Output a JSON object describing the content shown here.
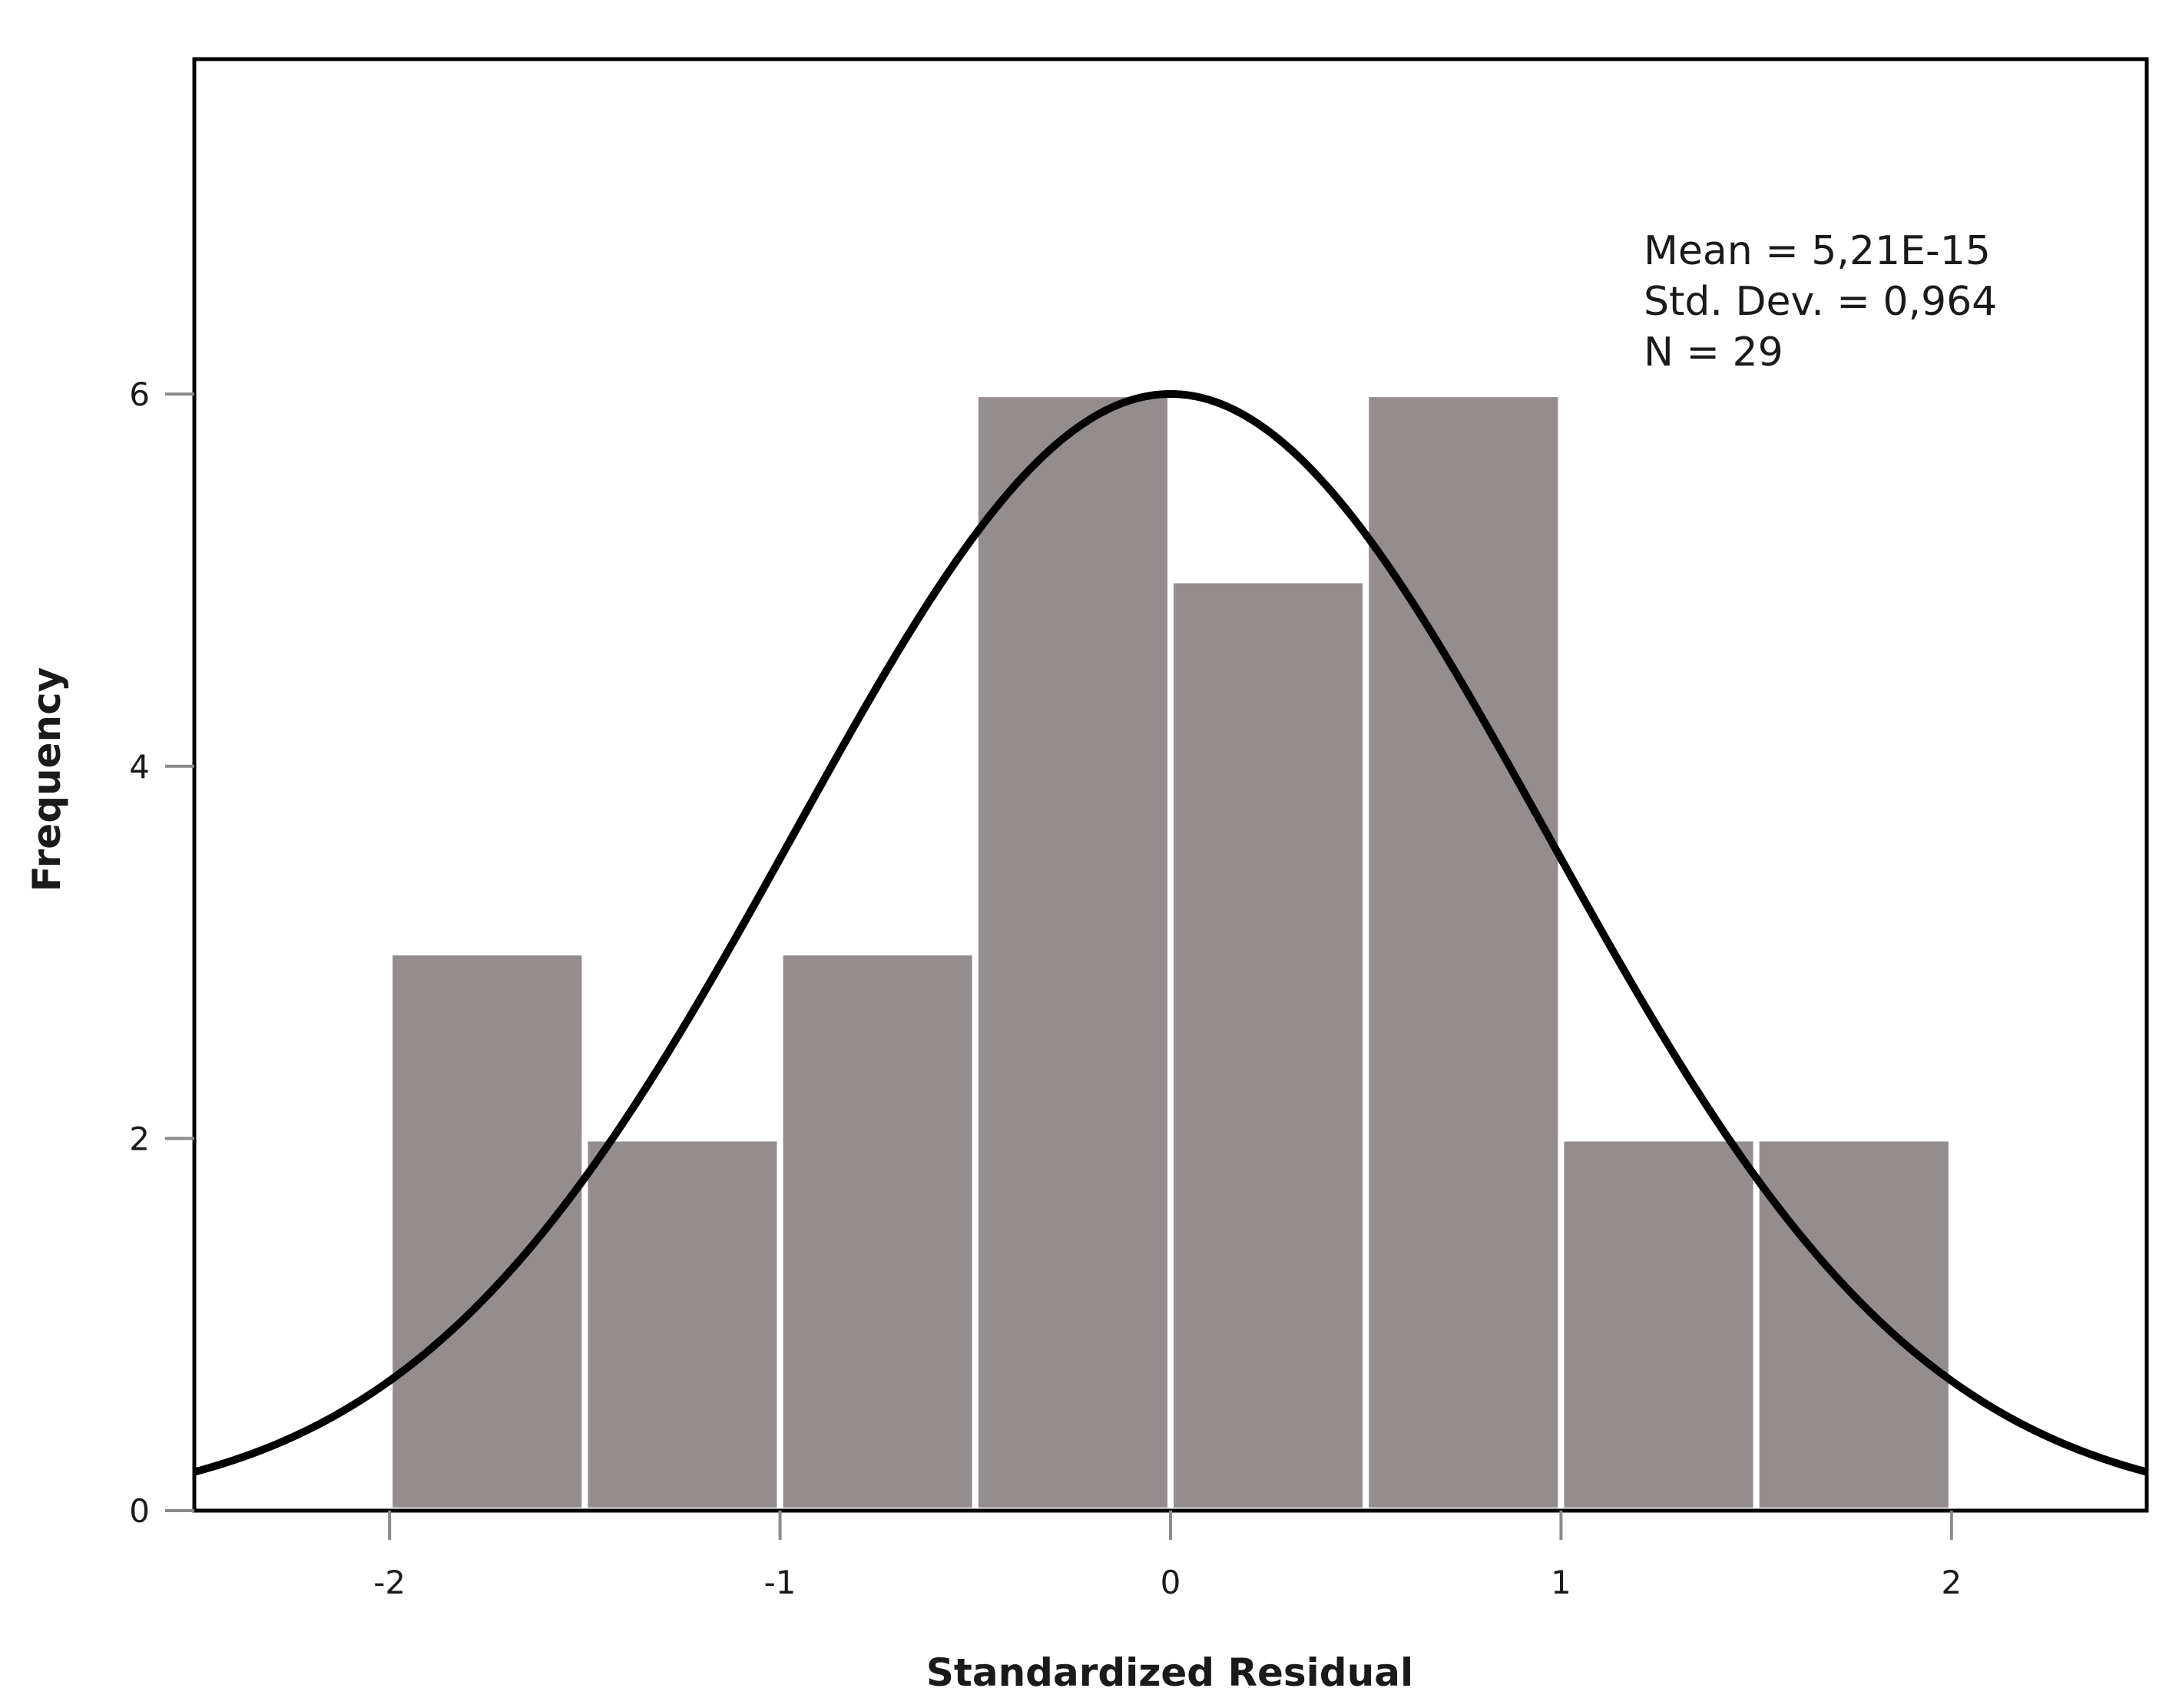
{
  "chart_data": {
    "type": "bar",
    "subtype": "histogram-with-normal-curve",
    "title": "",
    "xlabel": "Standardized Residual",
    "ylabel": "Frequency",
    "xlim": [
      -2.5,
      2.5
    ],
    "ylim": [
      0,
      7.8
    ],
    "bin_width": 0.5,
    "bins": [
      {
        "start": -2.0,
        "end": -1.5,
        "count": 3
      },
      {
        "start": -1.5,
        "end": -1.0,
        "count": 2
      },
      {
        "start": -1.0,
        "end": -0.5,
        "count": 3
      },
      {
        "start": -0.5,
        "end": 0.0,
        "count": 6
      },
      {
        "start": 0.0,
        "end": 0.5,
        "count": 5
      },
      {
        "start": 0.5,
        "end": 1.0,
        "count": 6
      },
      {
        "start": 1.0,
        "end": 1.5,
        "count": 2
      },
      {
        "start": 1.5,
        "end": 2.0,
        "count": 2
      }
    ],
    "x_ticks": [
      {
        "value": -2,
        "label": "-2"
      },
      {
        "value": -1,
        "label": "-1"
      },
      {
        "value": 0,
        "label": "0"
      },
      {
        "value": 1,
        "label": "1"
      },
      {
        "value": 2,
        "label": "2"
      }
    ],
    "y_ticks": [
      {
        "value": 0,
        "label": "0"
      },
      {
        "value": 2,
        "label": "2"
      },
      {
        "value": 4,
        "label": "4"
      },
      {
        "value": 6,
        "label": "6"
      }
    ],
    "normal_curve": {
      "mean": 0,
      "std_dev": 0.964,
      "n": 29
    },
    "stats_text": [
      "Mean = 5,21E-15",
      "Std. Dev. = 0,964",
      "N = 29"
    ],
    "colors": {
      "bar_fill": "#938e8d",
      "bar_edge": "#ffffff",
      "curve": "#000000",
      "frame": "#000000",
      "tick": "#8a8a8a"
    }
  }
}
